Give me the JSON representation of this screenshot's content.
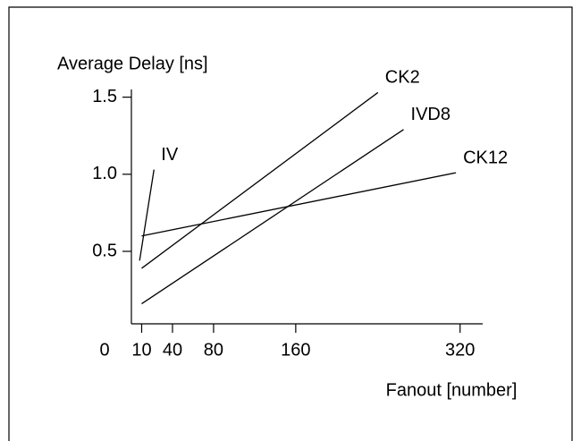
{
  "chart_data": {
    "type": "line",
    "ylabel": "Average Delay [ns]",
    "xlabel": "Fanout [number]",
    "xlim": [
      0,
      342
    ],
    "xticks": [
      0,
      10,
      40,
      80,
      160,
      320
    ],
    "ylim": [
      0.03,
      1.55
    ],
    "yticks": [
      {
        "value": 0.5,
        "label": "0.5"
      },
      {
        "value": 1,
        "label": "1.0"
      },
      {
        "value": 1.5,
        "label": "1.5"
      }
    ],
    "series": [
      {
        "name": "IV",
        "color": "#000000",
        "x": [
          8,
          22
        ],
        "values": [
          0.44,
          1.03
        ]
      },
      {
        "name": "CK2",
        "color": "#000000",
        "x": [
          10,
          240
        ],
        "values": [
          0.39,
          1.53
        ]
      },
      {
        "name": "IVD8",
        "color": "#000000",
        "x": [
          10,
          265
        ],
        "values": [
          0.16,
          1.29
        ]
      },
      {
        "name": "CK12",
        "color": "#000000",
        "x": [
          10,
          316
        ],
        "values": [
          0.6,
          1.01
        ]
      }
    ]
  }
}
